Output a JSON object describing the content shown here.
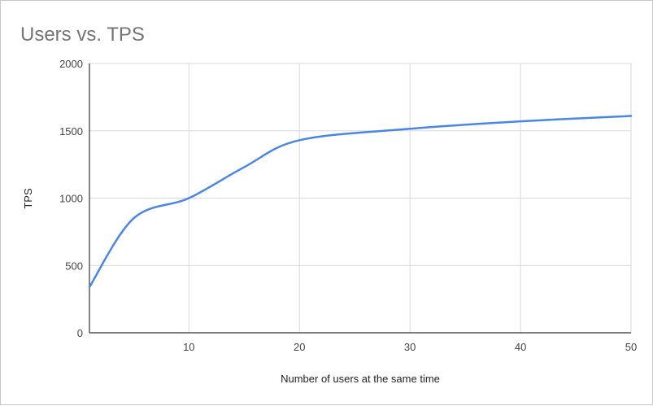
{
  "chart_data": {
    "type": "line",
    "title": "Users vs. TPS",
    "xlabel": "Number of users at the same time",
    "ylabel": "TPS",
    "xlim": [
      1,
      50
    ],
    "ylim": [
      0,
      2000
    ],
    "x_ticks": [
      10,
      20,
      30,
      40,
      50
    ],
    "y_ticks": [
      0,
      500,
      1000,
      1500,
      2000
    ],
    "grid": true,
    "legend": "none",
    "series": [
      {
        "color": "#4a86e8",
        "points": [
          {
            "x": 1,
            "y": 340
          },
          {
            "x": 5,
            "y": 850
          },
          {
            "x": 10,
            "y": 1000
          },
          {
            "x": 15,
            "y": 1230
          },
          {
            "x": 20,
            "y": 1430
          },
          {
            "x": 30,
            "y": 1515
          },
          {
            "x": 40,
            "y": 1570
          },
          {
            "x": 50,
            "y": 1610
          }
        ]
      }
    ]
  },
  "colors": {
    "grid": "#d9d9d9",
    "axis": "#333333",
    "line": "#4a86e8"
  }
}
